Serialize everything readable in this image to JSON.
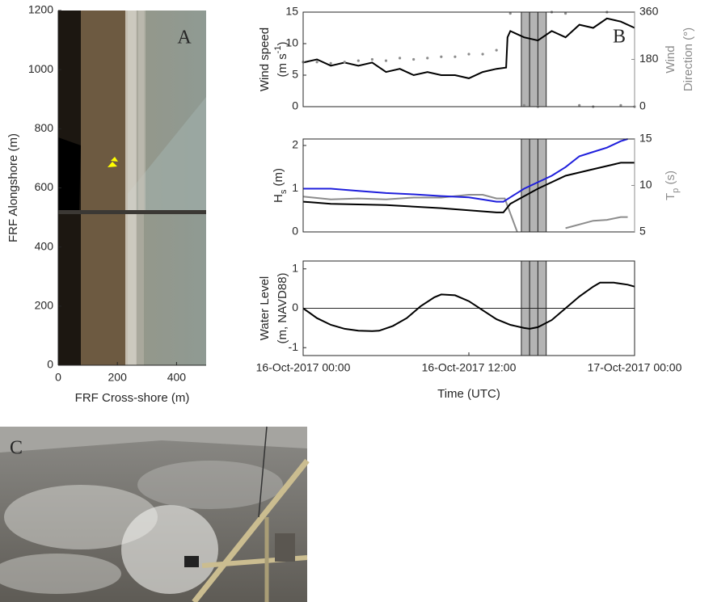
{
  "chart_data": [
    {
      "type": "image",
      "panel_label": "A",
      "xlabel": "FRF Cross-shore (m)",
      "ylabel": [
        [
          "FRF Alongshore (m)"
        ]
      ],
      "xlim": [
        0,
        500
      ],
      "xticks": [
        0,
        200,
        400
      ],
      "ylim": [
        0,
        1200
      ],
      "yticks": [
        0,
        200,
        400,
        600,
        800,
        1000,
        1200
      ]
    },
    {
      "type": "line",
      "panel_label": "B",
      "ylabel": [
        [
          "Wind speed"
        ],
        [
          "(m s",
          "-1",
          ")"
        ]
      ],
      "ylabel_shift": "sup",
      "y2label": [
        [
          "Wind"
        ],
        [
          "Direction (°)"
        ]
      ],
      "y2color": "#8c8c8c",
      "xlim": [
        0,
        24
      ],
      "ylim": [
        0,
        15
      ],
      "yticks": [
        0,
        5,
        10,
        15
      ],
      "y2lim": [
        0,
        360
      ],
      "y2ticks": [
        0,
        180,
        360
      ],
      "highlights": [
        [
          15.8,
          16.4
        ],
        [
          16.4,
          17.0
        ],
        [
          17.0,
          17.6
        ]
      ],
      "series": [
        {
          "color": "#000000",
          "x": [
            0,
            1,
            2,
            3,
            4,
            5,
            6,
            7,
            8,
            9,
            10,
            11,
            12,
            13,
            14,
            14.7,
            14.8,
            15,
            16,
            17,
            18,
            19,
            20,
            21,
            22,
            23,
            24
          ],
          "values": [
            7,
            7.5,
            6.5,
            7,
            6.5,
            7,
            5.5,
            6,
            5,
            5.5,
            5,
            5,
            4.5,
            5.5,
            6,
            6.2,
            11,
            12,
            11,
            10.5,
            12,
            11,
            13,
            12.5,
            14,
            13.5,
            12.5
          ]
        },
        {
          "color": "#8c8c8c",
          "axis": "y2",
          "style": "markers",
          "x": [
            0,
            1,
            2,
            3,
            4,
            5,
            6,
            7,
            8,
            9,
            10,
            11,
            12,
            13,
            14,
            15,
            16,
            17,
            18,
            19,
            20,
            21,
            22,
            23,
            24
          ],
          "values": [
            170,
            170,
            165,
            170,
            175,
            180,
            175,
            185,
            180,
            185,
            190,
            190,
            200,
            200,
            215,
            355,
            5,
            0,
            360,
            355,
            5,
            0,
            360,
            5,
            0
          ]
        }
      ]
    },
    {
      "type": "line",
      "ylabel": [
        [
          "H",
          "s",
          " (m)"
        ]
      ],
      "ylabel_shift": "sub",
      "y2label": [
        [
          "T",
          "p",
          " (s)"
        ]
      ],
      "y2color": "#8c8c8c",
      "xlim": [
        0,
        24
      ],
      "ylim": [
        0,
        2.15
      ],
      "yticks": [
        0,
        1,
        2
      ],
      "y2lim": [
        5,
        15
      ],
      "y2ticks": [
        5,
        10,
        15
      ],
      "highlights": [
        [
          15.8,
          16.4
        ],
        [
          16.4,
          17.0
        ],
        [
          17.0,
          17.6
        ]
      ],
      "series": [
        {
          "color": "#8c8c8c",
          "axis": "y2",
          "x": [
            0,
            2,
            4,
            6,
            8,
            10,
            12,
            13,
            14,
            14.6,
            15.5,
            17.5,
            19,
            21,
            22,
            23,
            23.5
          ],
          "values": [
            8.8,
            8.5,
            8.6,
            8.5,
            8.7,
            8.7,
            9.0,
            9.0,
            8.6,
            8.6,
            5.0,
            null,
            5.4,
            6.2,
            6.3,
            6.6,
            6.6
          ]
        },
        {
          "color": "#1f1fdc",
          "x": [
            0,
            2,
            4,
            6,
            8,
            10,
            12,
            13,
            14,
            14.5,
            15,
            16,
            17,
            18,
            19,
            20,
            21,
            22,
            23,
            23.5
          ],
          "values": [
            1.0,
            1.0,
            0.95,
            0.9,
            0.87,
            0.83,
            0.8,
            0.75,
            0.7,
            0.7,
            0.8,
            1.0,
            1.15,
            1.3,
            1.5,
            1.75,
            1.85,
            1.95,
            2.1,
            2.15
          ]
        },
        {
          "color": "#000000",
          "x": [
            0,
            2,
            6,
            10,
            14,
            14.5,
            15,
            17,
            19,
            21,
            23,
            24
          ],
          "values": [
            0.7,
            0.65,
            0.62,
            0.55,
            0.45,
            0.45,
            0.65,
            1.0,
            1.3,
            1.45,
            1.6,
            1.6
          ]
        }
      ]
    },
    {
      "type": "line",
      "ylabel": [
        [
          "Water Level"
        ],
        [
          "(m, NAVD88)"
        ]
      ],
      "xlabel": "Time (UTC)",
      "xlim": [
        0,
        24
      ],
      "ylim": [
        -1.2,
        1.2
      ],
      "yticks": [
        -1,
        0,
        1
      ],
      "reference_line": 0,
      "xticks": [
        {
          "value": 0,
          "label": "16-Oct-2017 00:00"
        },
        {
          "value": 12,
          "label": "16-Oct-2017 12:00"
        },
        {
          "value": 24,
          "label": "17-Oct-2017 00:00"
        }
      ],
      "highlights": [
        [
          15.8,
          16.4
        ],
        [
          16.4,
          17.0
        ],
        [
          17.0,
          17.6
        ]
      ],
      "series": [
        {
          "color": "#000000",
          "x": [
            0,
            1,
            2,
            3,
            4,
            5,
            5.5,
            6.5,
            7.5,
            8.5,
            9.5,
            10,
            11,
            12,
            13,
            14,
            15,
            16,
            16.4,
            17,
            18,
            19,
            20,
            21,
            21.5,
            22.5,
            23.5,
            24
          ],
          "values": [
            0,
            -0.25,
            -0.42,
            -0.52,
            -0.57,
            -0.58,
            -0.57,
            -0.45,
            -0.25,
            0.05,
            0.28,
            0.35,
            0.33,
            0.18,
            -0.05,
            -0.28,
            -0.42,
            -0.5,
            -0.52,
            -0.48,
            -0.3,
            0.0,
            0.3,
            0.55,
            0.65,
            0.65,
            0.6,
            0.55
          ]
        }
      ]
    },
    {
      "type": "image",
      "panel_label": "C"
    }
  ]
}
